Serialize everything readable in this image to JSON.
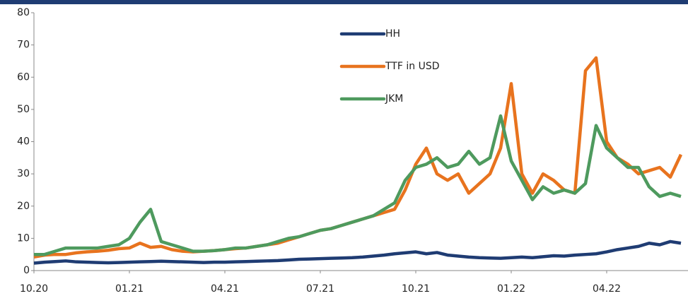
{
  "chart_data": {
    "type": "line",
    "categories": [
      "10.20",
      null,
      null,
      null,
      null,
      null,
      null,
      null,
      null,
      "01.21",
      null,
      null,
      null,
      null,
      null,
      null,
      null,
      null,
      "04.21",
      null,
      null,
      null,
      null,
      null,
      null,
      null,
      null,
      "07.21",
      null,
      null,
      null,
      null,
      null,
      null,
      null,
      null,
      "10.21",
      null,
      null,
      null,
      null,
      null,
      null,
      null,
      null,
      "01.22",
      null,
      null,
      null,
      null,
      null,
      null,
      null,
      null,
      "04.22",
      null,
      null,
      null,
      null,
      null,
      null,
      null
    ],
    "series": [
      {
        "name": "HH",
        "color": "#1f3c73",
        "values": [
          2.3,
          2.6,
          2.8,
          3.0,
          2.7,
          2.6,
          2.5,
          2.4,
          2.5,
          2.6,
          2.7,
          2.8,
          2.9,
          2.8,
          2.7,
          2.6,
          2.5,
          2.6,
          2.6,
          2.7,
          2.8,
          2.9,
          3.0,
          3.1,
          3.3,
          3.5,
          3.6,
          3.7,
          3.8,
          3.9,
          4.0,
          4.2,
          4.5,
          4.8,
          5.2,
          5.5,
          5.8,
          5.2,
          5.6,
          4.8,
          4.5,
          4.2,
          4.0,
          3.9,
          3.8,
          4.0,
          4.2,
          4.0,
          4.3,
          4.6,
          4.5,
          4.8,
          5.0,
          5.2,
          5.8,
          6.5,
          7.0,
          7.5,
          8.5,
          8.0,
          9.0,
          8.5
        ]
      },
      {
        "name": "TTF in USD",
        "color": "#e8731e",
        "values": [
          4.2,
          4.8,
          5.0,
          5.0,
          5.5,
          5.8,
          6.0,
          6.3,
          6.8,
          7.0,
          8.5,
          7.2,
          7.5,
          6.5,
          6.0,
          5.8,
          6.0,
          6.2,
          6.5,
          6.8,
          7.0,
          7.5,
          8.0,
          8.5,
          9.5,
          10.5,
          11.5,
          12.5,
          13,
          14,
          15,
          16,
          17,
          18,
          19,
          25,
          33,
          38,
          30,
          28,
          30,
          24,
          27,
          30,
          38,
          58,
          30,
          24,
          30,
          28,
          25,
          24,
          62,
          66,
          40,
          35,
          33,
          30,
          31,
          32,
          29,
          36
        ]
      },
      {
        "name": "JKM",
        "color": "#4e9a5e",
        "values": [
          5,
          5,
          6,
          7,
          7,
          7,
          7,
          7.5,
          8,
          10,
          15,
          19,
          9,
          8,
          7,
          6,
          6,
          6.2,
          6.5,
          7,
          7,
          7.5,
          8,
          9,
          10,
          10.5,
          11.5,
          12.5,
          13,
          14,
          15,
          16,
          17,
          19,
          21,
          28,
          32,
          33,
          35,
          32,
          33,
          37,
          33,
          35,
          48,
          34,
          28,
          22,
          26,
          24,
          25,
          24,
          27,
          45,
          38,
          35,
          32,
          32,
          26,
          23,
          24,
          23
        ]
      }
    ],
    "ylim": [
      0,
      80
    ],
    "yticks": [
      0,
      10,
      20,
      30,
      40,
      50,
      60,
      70,
      80
    ],
    "grid": false,
    "legend": "top"
  }
}
